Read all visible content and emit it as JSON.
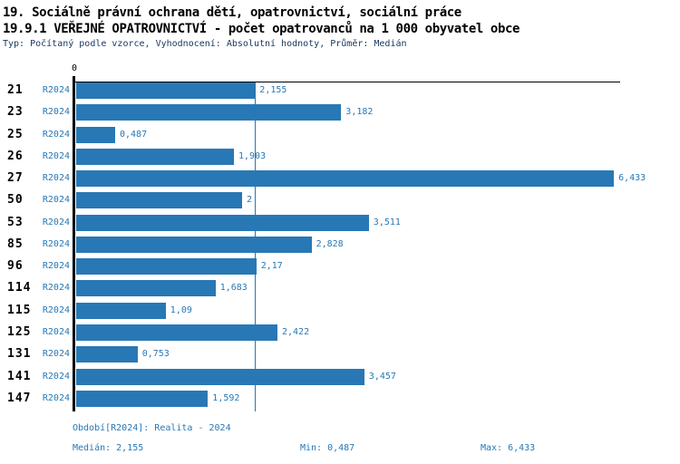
{
  "header": {
    "title_line1": "19. Sociálně právní ochrana dětí, opatrovnictví, sociální práce",
    "title_line2": "19.9.1 VEŘEJNÉ OPATROVNICTVÍ - počet opatrovanců na 1 000 obyvatel obce",
    "subtitle": "Typ: Počítaný podle vzorce, Vyhodnocení: Absolutní hodnoty, Průměr: Medián"
  },
  "chart_data": {
    "type": "bar",
    "orientation": "horizontal",
    "title": "19.9.1 VEŘEJNÉ OPATROVNICTVÍ - počet opatrovanců na 1 000 obyvatel obce",
    "series_label": "R2024",
    "zero_tick_label": "0",
    "x_axis": {
      "min": 0,
      "max_visible": 6.5,
      "gridlines": false
    },
    "median_line_value": 2.155,
    "legend_position": "none",
    "categories": [
      "21",
      "23",
      "25",
      "26",
      "27",
      "50",
      "53",
      "85",
      "96",
      "114",
      "115",
      "125",
      "131",
      "141",
      "147"
    ],
    "rows": [
      {
        "category": "21",
        "period": "R2024",
        "value": 2.155,
        "value_label": "2,155"
      },
      {
        "category": "23",
        "period": "R2024",
        "value": 3.182,
        "value_label": "3,182"
      },
      {
        "category": "25",
        "period": "R2024",
        "value": 0.487,
        "value_label": "0,487"
      },
      {
        "category": "26",
        "period": "R2024",
        "value": 1.903,
        "value_label": "1,903"
      },
      {
        "category": "27",
        "period": "R2024",
        "value": 6.433,
        "value_label": "6,433"
      },
      {
        "category": "50",
        "period": "R2024",
        "value": 2.0,
        "value_label": "2"
      },
      {
        "category": "53",
        "period": "R2024",
        "value": 3.511,
        "value_label": "3,511"
      },
      {
        "category": "85",
        "period": "R2024",
        "value": 2.828,
        "value_label": "2,828"
      },
      {
        "category": "96",
        "period": "R2024",
        "value": 2.17,
        "value_label": "2,17"
      },
      {
        "category": "114",
        "period": "R2024",
        "value": 1.683,
        "value_label": "1,683"
      },
      {
        "category": "115",
        "period": "R2024",
        "value": 1.09,
        "value_label": "1,09"
      },
      {
        "category": "125",
        "period": "R2024",
        "value": 2.422,
        "value_label": "2,422"
      },
      {
        "category": "131",
        "period": "R2024",
        "value": 0.753,
        "value_label": "0,753"
      },
      {
        "category": "141",
        "period": "R2024",
        "value": 3.457,
        "value_label": "3,457"
      },
      {
        "category": "147",
        "period": "R2024",
        "value": 1.592,
        "value_label": "1,592"
      }
    ],
    "colors": {
      "bar": "#2878b5",
      "median_line": "#2878b5",
      "axis": "#000000",
      "accent_text": "#2878b5"
    }
  },
  "footer": {
    "period": "Období[R2024]: Realita - 2024",
    "median": "Medián: 2,155",
    "min": "Min: 0,487",
    "max": "Max: 6,433"
  }
}
